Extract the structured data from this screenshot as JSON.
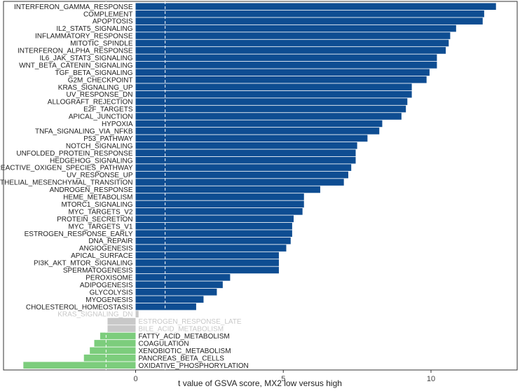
{
  "chart_data": {
    "type": "bar",
    "orientation": "horizontal",
    "xlabel": "t value of GSVA score, MX2 low versus high",
    "xlim": [
      -3.8,
      13.0
    ],
    "xticks": [
      0,
      5,
      10
    ],
    "threshold_line": 1,
    "threshold_line_neg": -1,
    "colors": {
      "up": "#0e4d92",
      "down": "#7ccd7c",
      "ns": "#c8c8c8",
      "label_ns": "#c8c8c8",
      "label": "#222222"
    },
    "categories": [
      "INTERFERON_GAMMA_RESPONSE",
      "COMPLEMENT",
      "APOPTOSIS",
      "IL2_STAT5_SIGNALING",
      "INFLAMMATORY_RESPONSE",
      "MITOTIC_SPINDLE",
      "INTERFERON_ALPHA_RESPONSE",
      "IL6_JAK_STAT3_SIGNALING",
      "WNT_BETA_CATENIN_SIGNALING",
      "TGF_BETA_SIGNALING",
      "G2M_CHECKPOINT",
      "KRAS_SIGNALING_UP",
      "UV_RESPONSE_DN",
      "ALLOGRAFT_REJECTION",
      "E2F_TARGETS",
      "APICAL_JUNCTION",
      "HYPOXIA",
      "TNFA_SIGNALING_VIA_NFKB",
      "P53_PATHWAY",
      "NOTCH_SIGNALING",
      "UNFOLDED_PROTEIN_RESPONSE",
      "HEDGEHOG_SIGNALING",
      "REACTIVE_OXIGEN_SPECIES_PATHWAY",
      "UV_RESPONSE_UP",
      "EPITHELIAL_MESENCHYMAL_TRANSITION",
      "ANDROGEN_RESPONSE",
      "HEME_METABOLISM",
      "MTORC1_SIGNALING",
      "MYC_TARGETS_V2",
      "PROTEIN_SECRETION",
      "MYC_TARGETS_V1",
      "ESTROGEN_RESPONSE_EARLY",
      "DNA_REPAIR",
      "ANGIOGENESIS",
      "APICAL_SURFACE",
      "PI3K_AKT_MTOR_SIGNALING",
      "SPERMATOGENESIS",
      "PEROXISOME",
      "ADIPOGENESIS",
      "GLYCOLYSIS",
      "MYOGENESIS",
      "CHOLESTEROL_HOMEOSTASIS",
      "KRAS_SIGNALING_DN",
      "ESTROGEN_RESPONSE_LATE",
      "BILE_ACID_METABOLISM",
      "FATTY_ACID_METABOLISM",
      "COAGULATION",
      "XENOBIOTIC_METABOLISM",
      "PANCREAS_BETA_CELLS",
      "OXIDATIVE_PHOSPHORYLATION"
    ],
    "values": [
      12.2,
      11.8,
      11.75,
      10.85,
      10.65,
      10.6,
      10.5,
      10.2,
      10.2,
      9.95,
      9.85,
      9.35,
      9.35,
      9.2,
      9.15,
      9.0,
      8.35,
      8.25,
      7.85,
      7.5,
      7.45,
      7.45,
      7.3,
      7.2,
      7.05,
      6.25,
      5.7,
      5.7,
      5.65,
      5.35,
      5.3,
      5.3,
      5.25,
      5.1,
      4.85,
      4.85,
      4.85,
      3.2,
      2.95,
      2.75,
      2.3,
      2.05,
      0.1,
      -0.95,
      -0.95,
      -1.2,
      -1.4,
      -1.55,
      -1.75,
      -3.8
    ],
    "status": [
      "up",
      "up",
      "up",
      "up",
      "up",
      "up",
      "up",
      "up",
      "up",
      "up",
      "up",
      "up",
      "up",
      "up",
      "up",
      "up",
      "up",
      "up",
      "up",
      "up",
      "up",
      "up",
      "up",
      "up",
      "up",
      "up",
      "up",
      "up",
      "up",
      "up",
      "up",
      "up",
      "up",
      "up",
      "up",
      "up",
      "up",
      "up",
      "up",
      "up",
      "up",
      "up",
      "ns",
      "ns",
      "ns",
      "down",
      "down",
      "down",
      "down",
      "down"
    ]
  }
}
